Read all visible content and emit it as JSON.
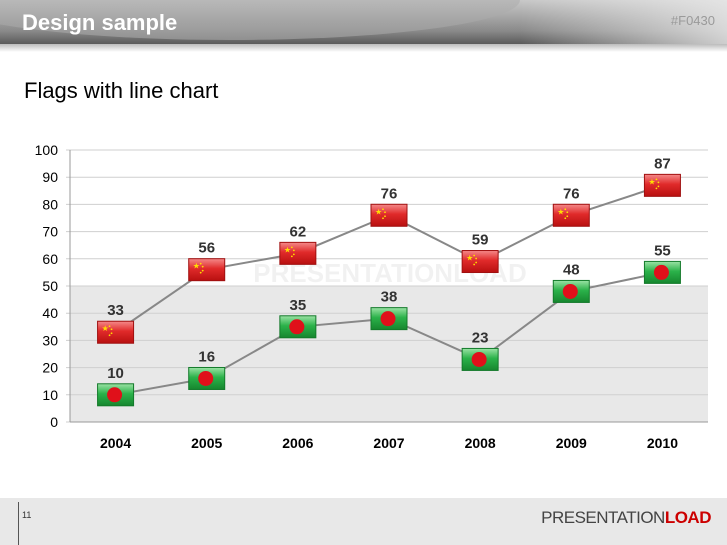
{
  "header": {
    "title": "Design sample",
    "code": "#F0430"
  },
  "subtitle": "Flags with line chart",
  "footer": {
    "page": "11",
    "logo_a": "PRESENTATION",
    "logo_b": "LOAD"
  },
  "watermark": "PRESENTATIONLOAD",
  "colors": {
    "line": "#888888",
    "band": "#e8e8e8",
    "china": "#d91f1f",
    "bangladesh": "#1e9a3c",
    "disc": "#e0101a"
  },
  "chart_data": {
    "type": "line",
    "categories": [
      "2004",
      "2005",
      "2006",
      "2007",
      "2008",
      "2009",
      "2010"
    ],
    "series": [
      {
        "name": "China",
        "flag": "china",
        "values": [
          33,
          56,
          62,
          76,
          59,
          76,
          87
        ]
      },
      {
        "name": "Bangladesh",
        "flag": "bangladesh",
        "values": [
          10,
          16,
          35,
          38,
          23,
          48,
          55
        ]
      }
    ],
    "ylim": [
      0,
      100
    ],
    "yticks": [
      "0",
      "10",
      "20",
      "30",
      "40",
      "50",
      "60",
      "70",
      "80",
      "90",
      "100"
    ],
    "band": [
      0,
      50
    ],
    "grid": true
  }
}
